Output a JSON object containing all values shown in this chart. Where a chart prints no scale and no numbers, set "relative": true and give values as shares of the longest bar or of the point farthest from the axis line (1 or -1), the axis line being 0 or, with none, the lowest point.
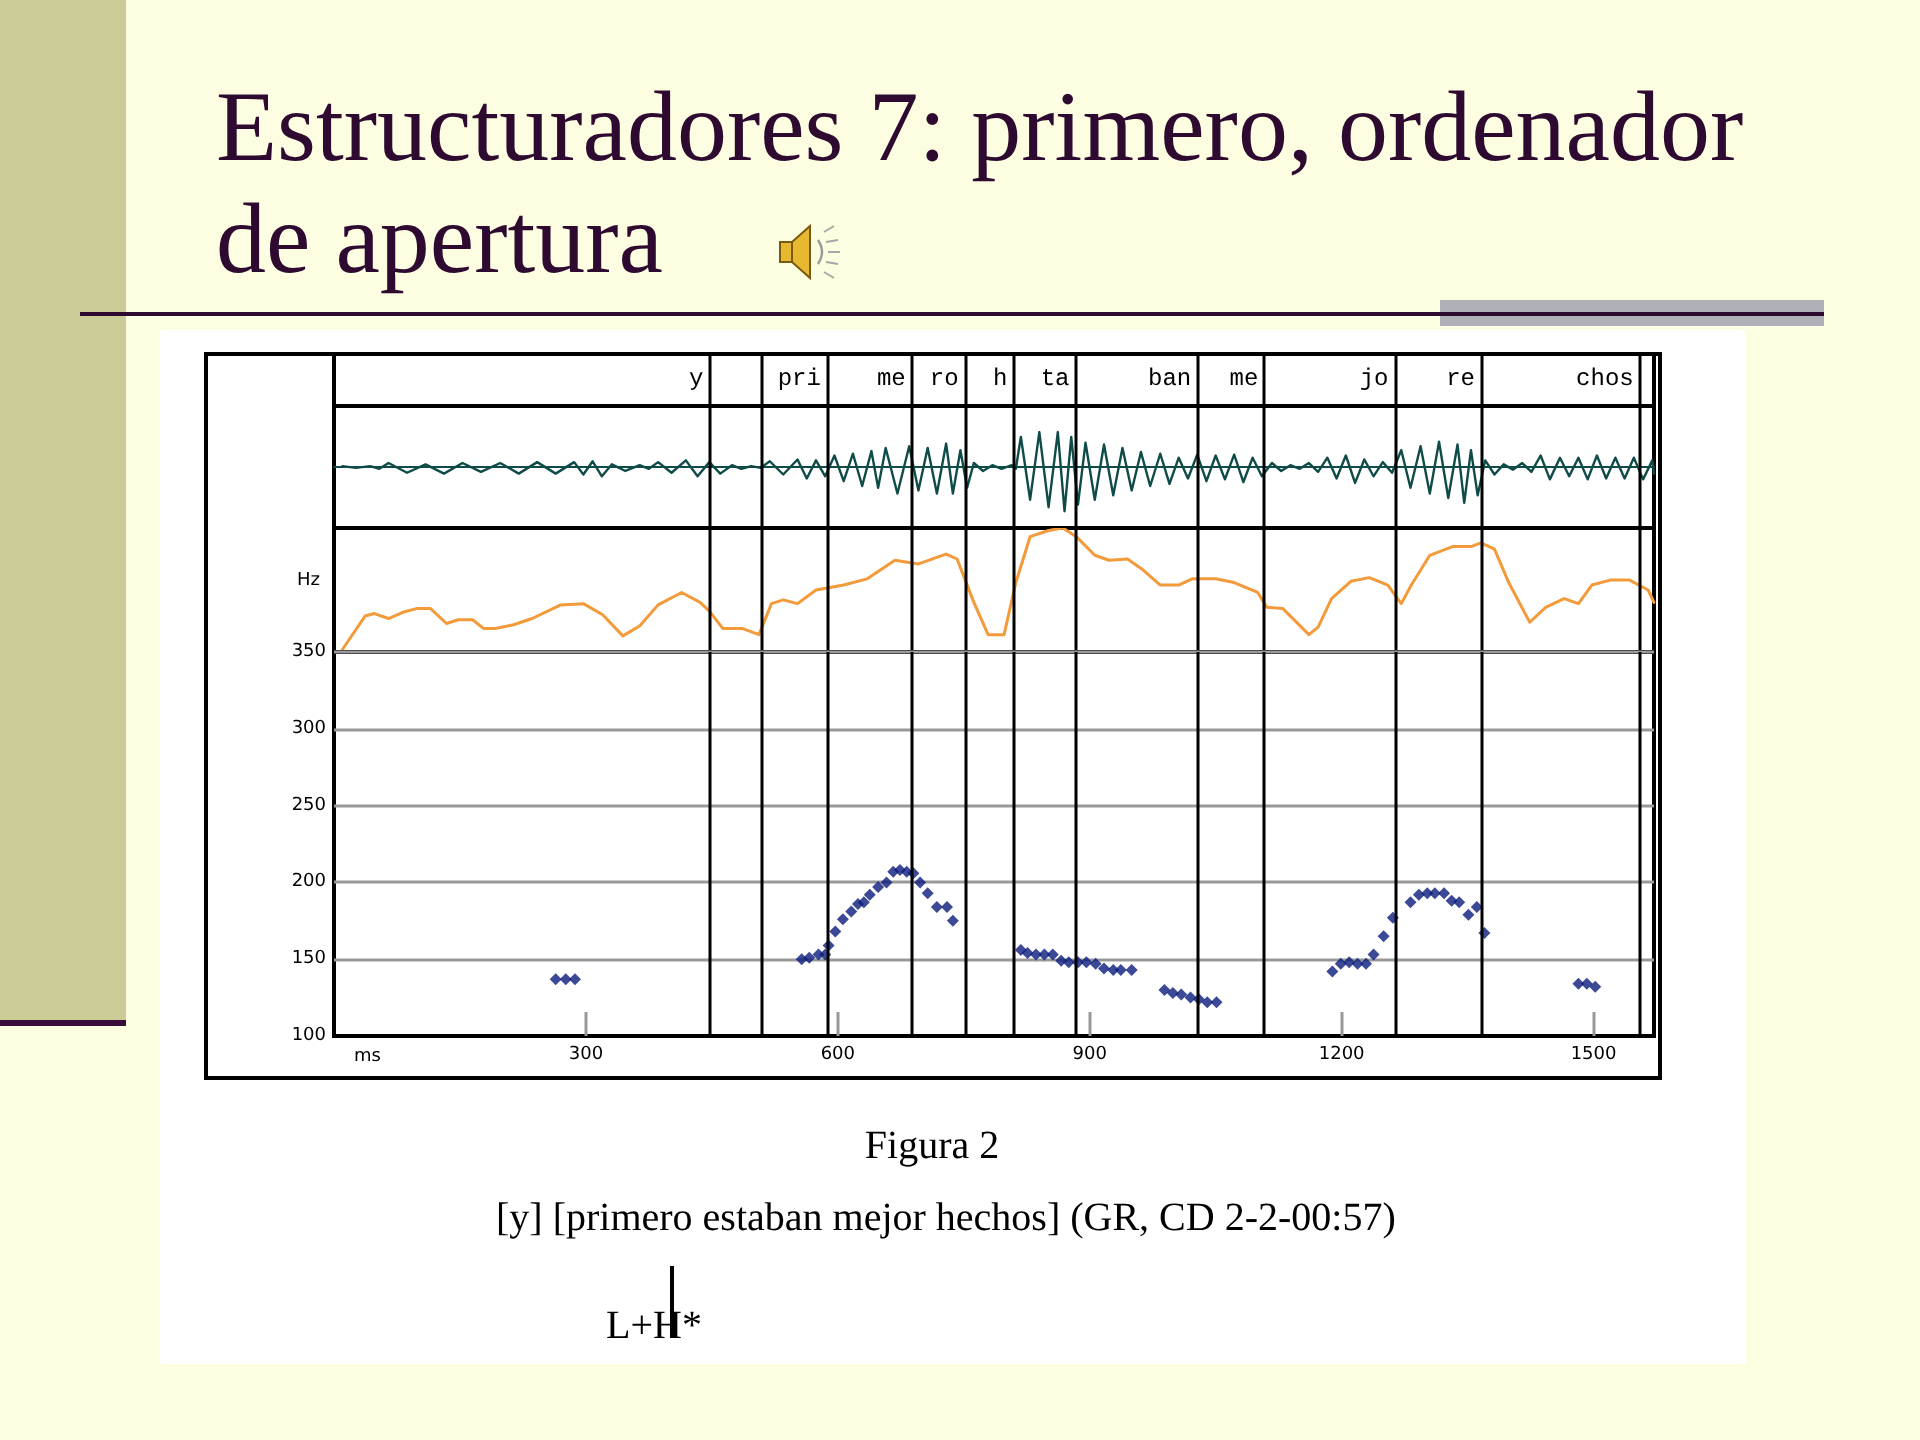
{
  "chart_data": [
    {
      "type": "line",
      "title": "Estructuradores 7: primero, ordenador de apertura",
      "relative": true,
      "xlim": [
        0,
        1572
      ],
      "color": "#0f4b47",
      "x": [
        10,
        26,
        43,
        54,
        65,
        87,
        109,
        131,
        153,
        175,
        198,
        220,
        242,
        264,
        286,
        297,
        308,
        319,
        331,
        347,
        364,
        375,
        386,
        402,
        419,
        433,
        447,
        460,
        474,
        485,
        497,
        508,
        519,
        535,
        552,
        563,
        574,
        585,
        596,
        607,
        618,
        629,
        640,
        648,
        657,
        671,
        685,
        696,
        707,
        718,
        729,
        737,
        746,
        754,
        762,
        773,
        784,
        795,
        807,
        812,
        818,
        829,
        840,
        851,
        862,
        870,
        878,
        886,
        895,
        906,
        917,
        928,
        939,
        950,
        961,
        972,
        984,
        995,
        1006,
        1017,
        1028,
        1039,
        1050,
        1061,
        1072,
        1083,
        1094,
        1105,
        1117,
        1128,
        1139,
        1150,
        1161,
        1172,
        1183,
        1194,
        1205,
        1216,
        1227,
        1238,
        1249,
        1260,
        1271,
        1282,
        1294,
        1305,
        1316,
        1327,
        1338,
        1346,
        1354,
        1362,
        1371,
        1382,
        1393,
        1404,
        1415,
        1426,
        1437,
        1448,
        1460,
        1471,
        1482,
        1493,
        1504,
        1515,
        1526,
        1537,
        1548,
        1559,
        1570,
        1572
      ],
      "values": [
        0.02,
        -0.02,
        0.02,
        -0.04,
        0.09,
        -0.13,
        0.06,
        -0.15,
        0.09,
        -0.11,
        0.09,
        -0.15,
        0.11,
        -0.15,
        0.11,
        -0.17,
        0.13,
        -0.21,
        0.06,
        -0.09,
        0.04,
        -0.04,
        0.11,
        -0.13,
        0.15,
        -0.21,
        0.11,
        -0.15,
        0.04,
        -0.04,
        0.02,
        -0.02,
        0.13,
        -0.17,
        0.17,
        -0.26,
        0.15,
        -0.21,
        0.26,
        -0.32,
        0.3,
        -0.43,
        0.36,
        -0.47,
        0.43,
        -0.6,
        0.47,
        -0.53,
        0.43,
        -0.6,
        0.53,
        -0.6,
        0.38,
        -0.47,
        0.09,
        -0.09,
        0.04,
        -0.04,
        0.04,
        -0.04,
        0.68,
        -0.74,
        0.79,
        -0.91,
        0.79,
        -1,
        0.68,
        -0.85,
        0.55,
        -0.74,
        0.51,
        -0.64,
        0.43,
        -0.53,
        0.34,
        -0.43,
        0.3,
        -0.38,
        0.21,
        -0.26,
        0.28,
        -0.32,
        0.26,
        -0.28,
        0.28,
        -0.34,
        0.21,
        -0.21,
        0.09,
        -0.09,
        0.04,
        -0.04,
        0.09,
        -0.11,
        0.21,
        -0.26,
        0.26,
        -0.36,
        0.17,
        -0.21,
        0.11,
        -0.13,
        0.38,
        -0.47,
        0.47,
        -0.6,
        0.57,
        -0.7,
        0.51,
        -0.81,
        0.38,
        -0.64,
        0.15,
        -0.17,
        0.06,
        -0.06,
        0.09,
        -0.11,
        0.26,
        -0.28,
        0.21,
        -0.21,
        0.21,
        -0.28,
        0.26,
        -0.26,
        0.21,
        -0.26,
        0.21,
        -0.28,
        0.15,
        -0.15
      ],
      "ref_lines": [
        {
          "axis": "x",
          "value": 447,
          "label": "y"
        },
        {
          "axis": "x",
          "value": 508
        },
        {
          "axis": "x",
          "value": 587,
          "label": "pri"
        },
        {
          "axis": "x",
          "value": 688,
          "label": "me"
        },
        {
          "axis": "x",
          "value": 751,
          "label": "ro"
        },
        {
          "axis": "x",
          "value": 809,
          "label": "h"
        },
        {
          "axis": "x",
          "value": 883,
          "label": "ta"
        },
        {
          "axis": "x",
          "value": 1028,
          "label": "ban"
        },
        {
          "axis": "x",
          "value": 1108,
          "label": "me"
        },
        {
          "axis": "x",
          "value": 1263,
          "label": "jo"
        },
        {
          "axis": "x",
          "value": 1366,
          "label": "re"
        },
        {
          "axis": "x",
          "value": 1555,
          "label": "chos"
        }
      ]
    },
    {
      "type": "line",
      "ylabel": "Hz",
      "relative": true,
      "xlim": [
        0,
        1572
      ],
      "color": "#f39a3a",
      "x": [
        10,
        37,
        48,
        65,
        82,
        98,
        115,
        134,
        148,
        165,
        178,
        192,
        214,
        236,
        270,
        297,
        320,
        344,
        364,
        386,
        414,
        436,
        447,
        463,
        486,
        506,
        521,
        535,
        552,
        574,
        607,
        635,
        668,
        696,
        729,
        742,
        762,
        779,
        798,
        812,
        829,
        851,
        868,
        884,
        906,
        923,
        945,
        962,
        984,
        1006,
        1022,
        1050,
        1072,
        1100,
        1111,
        1130,
        1161,
        1172,
        1188,
        1211,
        1233,
        1255,
        1271,
        1283,
        1305,
        1332,
        1354,
        1366,
        1382,
        1399,
        1424,
        1443,
        1465,
        1482,
        1498,
        1520,
        1543,
        1565,
        1572
      ],
      "values": [
        0.02,
        0.29,
        0.31,
        0.27,
        0.32,
        0.35,
        0.35,
        0.23,
        0.26,
        0.26,
        0.19,
        0.19,
        0.22,
        0.27,
        0.38,
        0.39,
        0.3,
        0.13,
        0.21,
        0.38,
        0.48,
        0.4,
        0.33,
        0.19,
        0.19,
        0.14,
        0.39,
        0.42,
        0.39,
        0.5,
        0.54,
        0.59,
        0.74,
        0.71,
        0.79,
        0.75,
        0.4,
        0.14,
        0.14,
        0.56,
        0.93,
        0.98,
        1,
        0.93,
        0.78,
        0.74,
        0.75,
        0.67,
        0.54,
        0.54,
        0.59,
        0.59,
        0.56,
        0.48,
        0.36,
        0.35,
        0.14,
        0.2,
        0.43,
        0.57,
        0.6,
        0.54,
        0.39,
        0.54,
        0.78,
        0.85,
        0.85,
        0.88,
        0.83,
        0.56,
        0.24,
        0.36,
        0.43,
        0.39,
        0.54,
        0.58,
        0.58,
        0.5,
        0.4
      ],
      "ref_lines": [
        {
          "axis": "x",
          "value": 447
        },
        {
          "axis": "x",
          "value": 508
        },
        {
          "axis": "x",
          "value": 587
        },
        {
          "axis": "x",
          "value": 688
        },
        {
          "axis": "x",
          "value": 751
        },
        {
          "axis": "x",
          "value": 809
        },
        {
          "axis": "x",
          "value": 883
        },
        {
          "axis": "x",
          "value": 1028
        },
        {
          "axis": "x",
          "value": 1108
        },
        {
          "axis": "x",
          "value": 1263
        },
        {
          "axis": "x",
          "value": 1366
        },
        {
          "axis": "x",
          "value": 1555
        }
      ]
    },
    {
      "type": "scatter",
      "xlabel": "ms",
      "color": "#0b1c7d",
      "marker": "diamond",
      "grid": "y",
      "xlim": [
        0,
        1572
      ],
      "xticks": [
        300,
        600,
        900,
        1200,
        1500
      ],
      "ylim": [
        100,
        350
      ],
      "yticks": [
        100,
        150,
        200,
        250,
        300,
        350
      ],
      "x": [
        264,
        276,
        287,
        557,
        566,
        577,
        585,
        589,
        597,
        606,
        616,
        624,
        631,
        638,
        648,
        658,
        666,
        674,
        682,
        690,
        698,
        707,
        718,
        730,
        737,
        818,
        826,
        836,
        846,
        856,
        866,
        875,
        886,
        896,
        907,
        917,
        928,
        937,
        950,
        989,
        999,
        1009,
        1020,
        1030,
        1040,
        1051,
        1189,
        1199,
        1209,
        1219,
        1229,
        1238,
        1250,
        1261,
        1282,
        1292,
        1302,
        1311,
        1322,
        1331,
        1340,
        1351,
        1361,
        1370,
        1482,
        1492,
        1502
      ],
      "values": [
        137,
        137,
        137,
        150,
        151,
        153,
        153,
        159,
        168,
        176,
        181,
        186,
        187,
        192,
        197,
        200,
        207,
        208,
        207,
        206,
        200,
        193,
        184,
        184,
        175,
        156,
        154,
        153,
        153,
        153,
        149,
        148,
        148,
        148,
        147,
        144,
        143,
        143,
        143,
        130,
        128,
        127,
        125,
        124,
        122,
        122,
        142,
        147,
        148,
        147,
        147,
        153,
        165,
        177,
        187,
        192,
        193,
        193,
        193,
        188,
        187,
        179,
        184,
        167,
        134,
        134,
        132
      ],
      "ref_lines": [
        {
          "axis": "x",
          "value": 447
        },
        {
          "axis": "x",
          "value": 508
        },
        {
          "axis": "x",
          "value": 587
        },
        {
          "axis": "x",
          "value": 688
        },
        {
          "axis": "x",
          "value": 751
        },
        {
          "axis": "x",
          "value": 809
        },
        {
          "axis": "x",
          "value": 883
        },
        {
          "axis": "x",
          "value": 1028
        },
        {
          "axis": "x",
          "value": 1108
        },
        {
          "axis": "x",
          "value": 1263
        },
        {
          "axis": "x",
          "value": 1366
        },
        {
          "axis": "x",
          "value": 1555
        }
      ],
      "annotations": [
        "Figura 2",
        "[y] [primero estaban mejor hechos] (GR, CD 2-2-00:57)",
        "L+H*"
      ]
    }
  ]
}
